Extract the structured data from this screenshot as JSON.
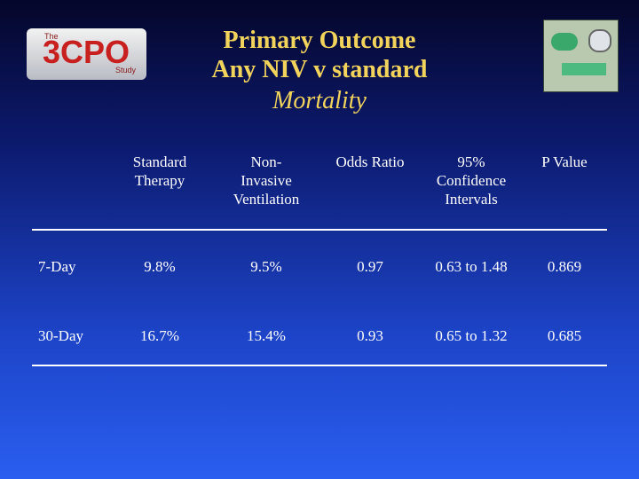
{
  "logo": {
    "small_top": "The",
    "main": "3CPO",
    "small_bottom": "Study"
  },
  "header": {
    "title_lines": [
      "Primary Outcome",
      "Any NIV v standard"
    ],
    "subtitle": "Mortality"
  },
  "table": {
    "columns": [
      [],
      [
        "Standard",
        "Therapy"
      ],
      [
        "Non-",
        "Invasive",
        "Ventilation"
      ],
      [
        "Odds Ratio"
      ],
      [
        "95%",
        "Confidence",
        "Intervals"
      ],
      [
        "P Value"
      ]
    ],
    "rows": [
      [
        "7-Day",
        "9.8%",
        "9.5%",
        "0.97",
        "0.63 to 1.48",
        "0.869"
      ],
      [
        "30-Day",
        "16.7%",
        "15.4%",
        "0.93",
        "0.65 to 1.32",
        "0.685"
      ]
    ]
  }
}
